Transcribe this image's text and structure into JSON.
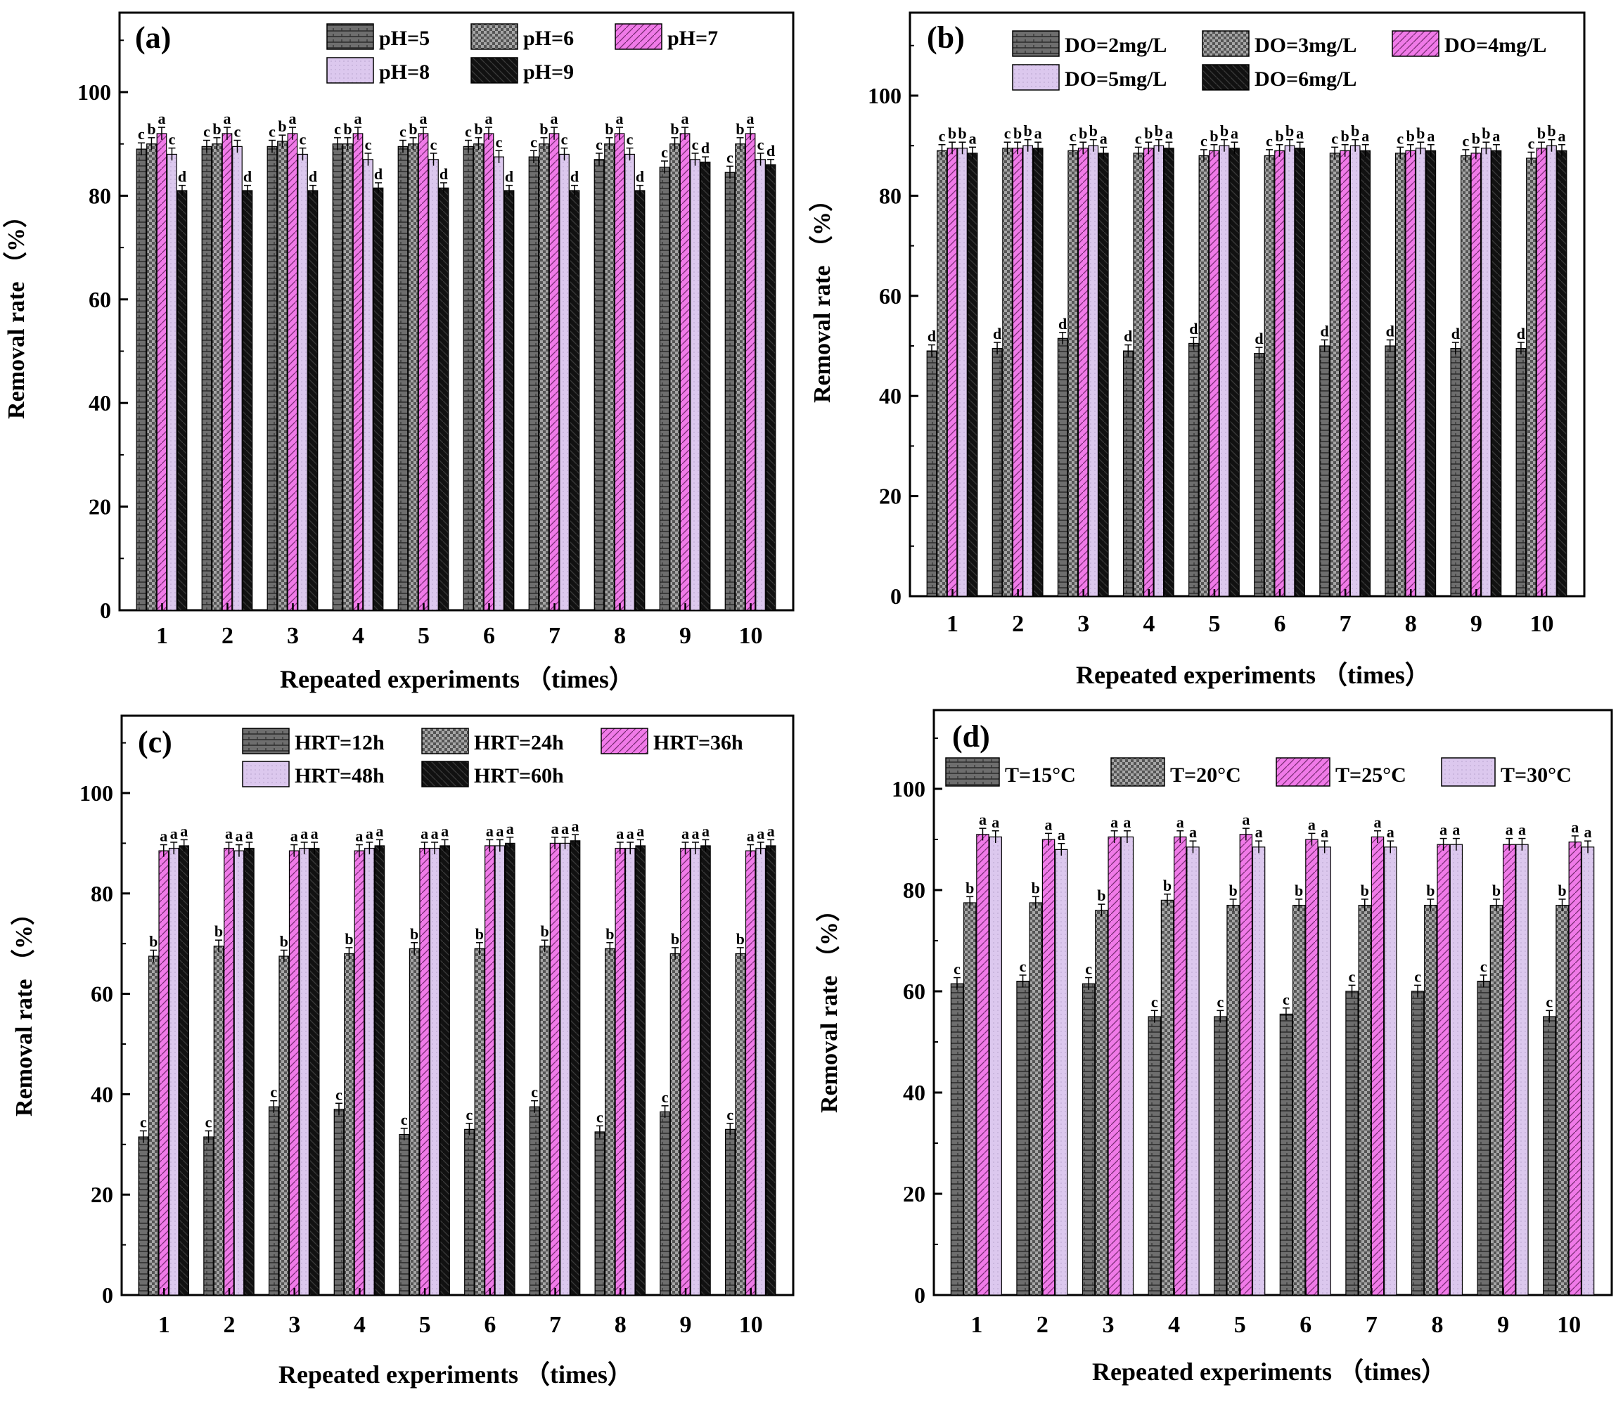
{
  "colors": {
    "series1": "#6e6e6e",
    "series2": "#9a9a9a",
    "series3": "#f07ae8",
    "series4": "#dcc8ee",
    "series5": "#111111",
    "frame": "#000000"
  },
  "chart_data": [
    {
      "type": "bar",
      "panel_label": "(a)",
      "title": "",
      "xlabel": "Repeated experiments （times）",
      "ylabel": "Removal rate （%）",
      "ylim": [
        0,
        115
      ],
      "yticks": [
        "0",
        "20",
        "40",
        "60",
        "80",
        "100"
      ],
      "grid": false,
      "legend_position": "top-right",
      "categories": [
        "1",
        "2",
        "3",
        "4",
        "5",
        "6",
        "7",
        "8",
        "9",
        "10"
      ],
      "series": [
        {
          "name": "pH=5",
          "values": [
            89.0,
            89.5,
            89.5,
            90.0,
            89.5,
            89.5,
            87.5,
            87.0,
            85.5,
            84.5
          ],
          "errors": [
            1.2,
            1.2,
            1.2,
            1.2,
            1.2,
            1.2,
            1.2,
            1.2,
            1.2,
            1.2
          ],
          "labels": [
            "c",
            "c",
            "c",
            "c",
            "c",
            "c",
            "c",
            "c",
            "c",
            "c"
          ]
        },
        {
          "name": "pH=6",
          "values": [
            90.0,
            90.0,
            90.5,
            90.0,
            90.0,
            90.0,
            90.0,
            90.0,
            90.0,
            90.0
          ],
          "errors": [
            1.2,
            1.2,
            1.2,
            1.2,
            1.2,
            1.2,
            1.2,
            1.2,
            1.2,
            1.2
          ],
          "labels": [
            "b",
            "b",
            "b",
            "b",
            "b",
            "b",
            "b",
            "b",
            "b",
            "b"
          ]
        },
        {
          "name": "pH=7",
          "values": [
            92.0,
            92.0,
            92.0,
            92.0,
            92.0,
            92.0,
            92.0,
            92.0,
            92.0,
            92.0
          ],
          "errors": [
            1.2,
            1.2,
            1.2,
            1.2,
            1.2,
            1.2,
            1.2,
            1.2,
            1.2,
            1.2
          ],
          "labels": [
            "a",
            "a",
            "a",
            "a",
            "a",
            "a",
            "a",
            "a",
            "a",
            "a"
          ]
        },
        {
          "name": "pH=8",
          "values": [
            88.0,
            89.5,
            88.0,
            87.0,
            87.0,
            87.5,
            88.0,
            88.0,
            87.0,
            87.0
          ],
          "errors": [
            1.2,
            1.2,
            1.2,
            1.2,
            1.2,
            1.2,
            1.2,
            1.2,
            1.2,
            1.2
          ],
          "labels": [
            "c",
            "c",
            "c",
            "c",
            "c",
            "c",
            "c",
            "c",
            "c",
            "c"
          ]
        },
        {
          "name": "pH=9",
          "values": [
            81.0,
            81.0,
            81.0,
            81.5,
            81.5,
            81.0,
            81.0,
            81.0,
            86.5,
            86.0
          ],
          "errors": [
            1.0,
            1.0,
            1.0,
            1.0,
            1.0,
            1.0,
            1.0,
            1.0,
            1.0,
            1.0
          ],
          "labels": [
            "d",
            "d",
            "d",
            "d",
            "d",
            "d",
            "d",
            "d",
            "d",
            "d"
          ]
        }
      ]
    },
    {
      "type": "bar",
      "panel_label": "(b)",
      "title": "",
      "xlabel": "Repeated experiments （times）",
      "ylabel": "Removal rate （%）",
      "ylim": [
        0,
        115
      ],
      "yticks": [
        "0",
        "20",
        "40",
        "60",
        "80",
        "100"
      ],
      "grid": false,
      "legend_position": "top-right",
      "categories": [
        "1",
        "2",
        "3",
        "4",
        "5",
        "6",
        "7",
        "8",
        "9",
        "10"
      ],
      "series": [
        {
          "name": "DO=2mg/L",
          "values": [
            49.0,
            49.5,
            51.5,
            49.0,
            50.5,
            48.5,
            50.0,
            50.0,
            49.5,
            49.5
          ],
          "errors": [
            1.2,
            1.2,
            1.2,
            1.2,
            1.2,
            1.2,
            1.2,
            1.2,
            1.2,
            1.2
          ],
          "labels": [
            "d",
            "d",
            "d",
            "d",
            "d",
            "d",
            "d",
            "d",
            "d",
            "d"
          ]
        },
        {
          "name": "DO=3mg/L",
          "values": [
            89.0,
            89.5,
            89.0,
            88.5,
            88.0,
            88.0,
            88.5,
            88.5,
            88.0,
            87.5
          ],
          "errors": [
            1.2,
            1.2,
            1.2,
            1.2,
            1.2,
            1.2,
            1.2,
            1.2,
            1.2,
            1.2
          ],
          "labels": [
            "c",
            "c",
            "c",
            "c",
            "c",
            "c",
            "c",
            "c",
            "c",
            "c"
          ]
        },
        {
          "name": "DO=4mg/L",
          "values": [
            89.5,
            89.5,
            89.5,
            89.5,
            89.0,
            89.0,
            89.0,
            89.0,
            88.5,
            89.5
          ],
          "errors": [
            1.2,
            1.2,
            1.2,
            1.2,
            1.2,
            1.2,
            1.2,
            1.2,
            1.2,
            1.2
          ],
          "labels": [
            "b",
            "b",
            "b",
            "b",
            "b",
            "b",
            "b",
            "b",
            "b",
            "b"
          ]
        },
        {
          "name": "DO=5mg/L",
          "values": [
            89.5,
            90.0,
            90.0,
            90.0,
            90.0,
            90.0,
            90.0,
            89.5,
            89.5,
            90.0
          ],
          "errors": [
            1.2,
            1.2,
            1.2,
            1.2,
            1.2,
            1.2,
            1.2,
            1.2,
            1.2,
            1.2
          ],
          "labels": [
            "b",
            "b",
            "b",
            "b",
            "b",
            "b",
            "b",
            "b",
            "b",
            "b"
          ]
        },
        {
          "name": "DO=6mg/L",
          "values": [
            88.5,
            89.5,
            88.5,
            89.5,
            89.5,
            89.5,
            89.0,
            89.0,
            89.0,
            89.0
          ],
          "errors": [
            1.2,
            1.2,
            1.2,
            1.2,
            1.2,
            1.2,
            1.2,
            1.2,
            1.2,
            1.2
          ],
          "labels": [
            "a",
            "a",
            "a",
            "a",
            "a",
            "a",
            "a",
            "a",
            "a",
            "a"
          ]
        }
      ]
    },
    {
      "type": "bar",
      "panel_label": "(c)",
      "title": "",
      "xlabel": "Repeated experiments （times）",
      "ylabel": "Removal rate （%）",
      "ylim": [
        0,
        115
      ],
      "yticks": [
        "0",
        "20",
        "40",
        "60",
        "80",
        "100"
      ],
      "grid": false,
      "legend_position": "top-right",
      "categories": [
        "1",
        "2",
        "3",
        "4",
        "5",
        "6",
        "7",
        "8",
        "9",
        "10"
      ],
      "series": [
        {
          "name": "HRT=12h",
          "values": [
            31.5,
            31.5,
            37.5,
            37.0,
            32.0,
            33.0,
            37.5,
            32.5,
            36.5,
            33.0
          ],
          "errors": [
            1.2,
            1.2,
            1.2,
            1.2,
            1.2,
            1.2,
            1.2,
            1.2,
            1.2,
            1.2
          ],
          "labels": [
            "c",
            "c",
            "c",
            "c",
            "c",
            "c",
            "c",
            "c",
            "c",
            "c"
          ]
        },
        {
          "name": "HRT=24h",
          "values": [
            67.5,
            69.5,
            67.5,
            68.0,
            69.0,
            69.0,
            69.5,
            69.0,
            68.0,
            68.0
          ],
          "errors": [
            1.2,
            1.2,
            1.2,
            1.2,
            1.2,
            1.2,
            1.2,
            1.2,
            1.2,
            1.2
          ],
          "labels": [
            "b",
            "b",
            "b",
            "b",
            "b",
            "b",
            "b",
            "b",
            "b",
            "b"
          ]
        },
        {
          "name": "HRT=36h",
          "values": [
            88.5,
            89.0,
            88.5,
            88.5,
            89.0,
            89.5,
            90.0,
            89.0,
            89.0,
            88.5
          ],
          "errors": [
            1.2,
            1.2,
            1.2,
            1.2,
            1.2,
            1.2,
            1.2,
            1.2,
            1.2,
            1.2
          ],
          "labels": [
            "a",
            "a",
            "a",
            "a",
            "a",
            "a",
            "a",
            "a",
            "a",
            "a"
          ]
        },
        {
          "name": "HRT=48h",
          "values": [
            89.0,
            88.5,
            89.0,
            89.0,
            89.0,
            89.5,
            90.0,
            89.0,
            89.0,
            89.0
          ],
          "errors": [
            1.2,
            1.2,
            1.2,
            1.2,
            1.2,
            1.2,
            1.2,
            1.2,
            1.2,
            1.2
          ],
          "labels": [
            "a",
            "a",
            "a",
            "a",
            "a",
            "a",
            "a",
            "a",
            "a",
            "a"
          ]
        },
        {
          "name": "HRT=60h",
          "values": [
            89.5,
            89.0,
            89.0,
            89.5,
            89.5,
            90.0,
            90.5,
            89.5,
            89.5,
            89.5
          ],
          "errors": [
            1.2,
            1.2,
            1.2,
            1.2,
            1.2,
            1.2,
            1.2,
            1.2,
            1.2,
            1.2
          ],
          "labels": [
            "a",
            "a",
            "a",
            "a",
            "a",
            "a",
            "a",
            "a",
            "a",
            "a"
          ]
        }
      ]
    },
    {
      "type": "bar",
      "panel_label": "(d)",
      "title": "",
      "xlabel": "Repeated experiments （times）",
      "ylabel": "Removal rate （%）",
      "ylim": [
        0,
        115
      ],
      "yticks": [
        "0",
        "20",
        "40",
        "60",
        "80",
        "100"
      ],
      "grid": false,
      "legend_position": "top",
      "categories": [
        "1",
        "2",
        "3",
        "4",
        "5",
        "6",
        "7",
        "8",
        "9",
        "10"
      ],
      "series": [
        {
          "name": "T=15°C",
          "values": [
            61.5,
            62.0,
            61.5,
            55.0,
            55.0,
            55.5,
            60.0,
            60.0,
            62.0,
            55.0
          ],
          "errors": [
            1.2,
            1.2,
            1.2,
            1.2,
            1.2,
            1.2,
            1.2,
            1.2,
            1.2,
            1.2
          ],
          "labels": [
            "c",
            "c",
            "c",
            "c",
            "c",
            "c",
            "c",
            "c",
            "c",
            "c"
          ]
        },
        {
          "name": "T=20°C",
          "values": [
            77.5,
            77.5,
            76.0,
            78.0,
            77.0,
            77.0,
            77.0,
            77.0,
            77.0,
            77.0
          ],
          "errors": [
            1.2,
            1.2,
            1.2,
            1.2,
            1.2,
            1.2,
            1.2,
            1.2,
            1.2,
            1.2
          ],
          "labels": [
            "b",
            "b",
            "b",
            "b",
            "b",
            "b",
            "b",
            "b",
            "b",
            "b"
          ]
        },
        {
          "name": "T=25°C",
          "values": [
            91.0,
            90.0,
            90.5,
            90.5,
            91.0,
            90.0,
            90.5,
            89.0,
            89.0,
            89.5
          ],
          "errors": [
            1.2,
            1.2,
            1.2,
            1.2,
            1.2,
            1.2,
            1.2,
            1.2,
            1.2,
            1.2
          ],
          "labels": [
            "a",
            "a",
            "a",
            "a",
            "a",
            "a",
            "a",
            "a",
            "a",
            "a"
          ]
        },
        {
          "name": "T=30°C",
          "values": [
            90.5,
            88.0,
            90.5,
            88.5,
            88.5,
            88.5,
            88.5,
            89.0,
            89.0,
            88.5
          ],
          "errors": [
            1.2,
            1.2,
            1.2,
            1.2,
            1.2,
            1.2,
            1.2,
            1.2,
            1.2,
            1.2
          ],
          "labels": [
            "a",
            "a",
            "a",
            "a",
            "a",
            "a",
            "a",
            "a",
            "a",
            "a"
          ]
        }
      ]
    }
  ]
}
